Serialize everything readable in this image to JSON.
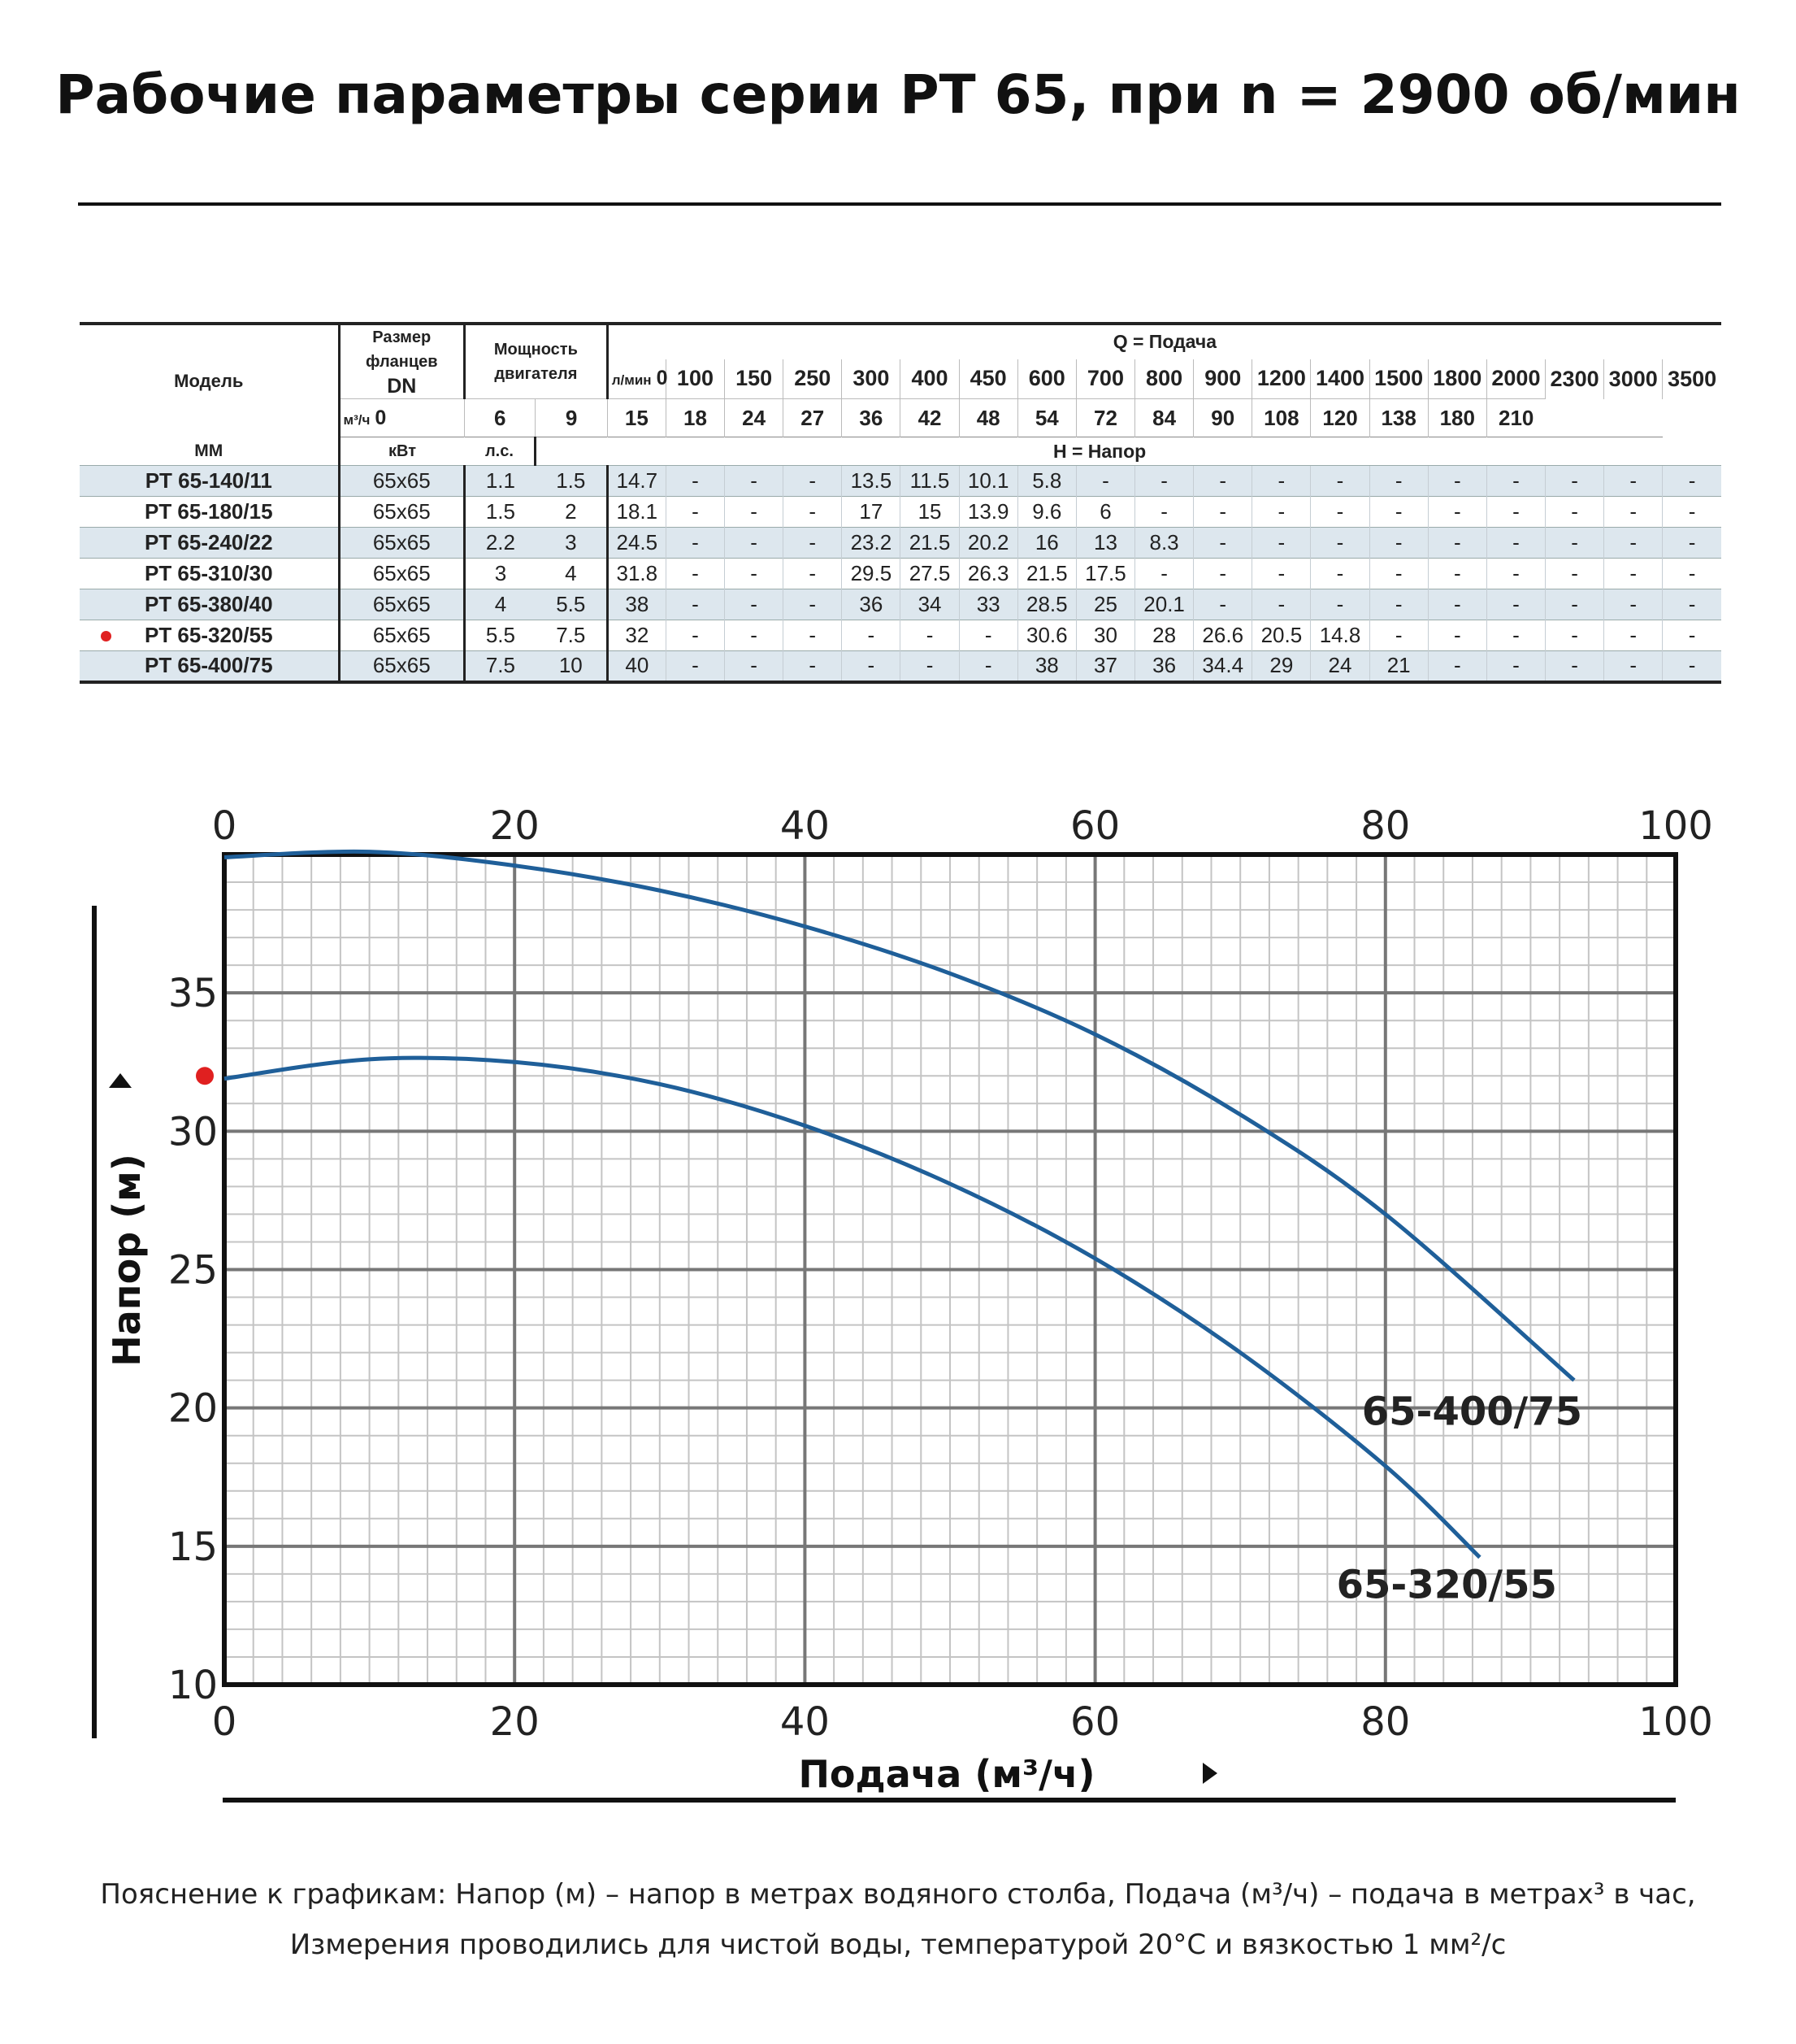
{
  "title": "Рабочие параметры серии PT 65, при n = 2900 об/мин",
  "table": {
    "headers": {
      "model": "Модель",
      "flange_l1": "Размер",
      "flange_l2": "фланцев",
      "dn": "DN",
      "mm": "ММ",
      "power_l1": "Мощность",
      "power_l2": "двигателя",
      "kw": "кВт",
      "hp": "л.с.",
      "flow_title": "Q = Подача",
      "lpm_unit": "л/мин",
      "m3h_unit": "м³/ч",
      "head_title": "H = Напор"
    },
    "flow_lpm": [
      "0",
      "100",
      "150",
      "250",
      "300",
      "400",
      "450",
      "600",
      "700",
      "800",
      "900",
      "1200",
      "1400",
      "1500",
      "1800",
      "2000",
      "2300",
      "3000",
      "3500"
    ],
    "flow_m3h": [
      "0",
      "6",
      "9",
      "15",
      "18",
      "24",
      "27",
      "36",
      "42",
      "48",
      "54",
      "72",
      "84",
      "90",
      "108",
      "120",
      "138",
      "180",
      "210"
    ],
    "rows": [
      {
        "model": "PT 65-140/11",
        "dn": "65x65",
        "kw": "1.1",
        "hp": "1.5",
        "highlight": false,
        "head": [
          "14.7",
          "-",
          "-",
          "-",
          "13.5",
          "11.5",
          "10.1",
          "5.8",
          "-",
          "-",
          "-",
          "-",
          "-",
          "-",
          "-",
          "-",
          "-",
          "-",
          "-"
        ]
      },
      {
        "model": "PT 65-180/15",
        "dn": "65x65",
        "kw": "1.5",
        "hp": "2",
        "highlight": false,
        "head": [
          "18.1",
          "-",
          "-",
          "-",
          "17",
          "15",
          "13.9",
          "9.6",
          "6",
          "-",
          "-",
          "-",
          "-",
          "-",
          "-",
          "-",
          "-",
          "-",
          "-"
        ]
      },
      {
        "model": "PT 65-240/22",
        "dn": "65x65",
        "kw": "2.2",
        "hp": "3",
        "highlight": false,
        "head": [
          "24.5",
          "-",
          "-",
          "-",
          "23.2",
          "21.5",
          "20.2",
          "16",
          "13",
          "8.3",
          "-",
          "-",
          "-",
          "-",
          "-",
          "-",
          "-",
          "-",
          "-"
        ]
      },
      {
        "model": "PT 65-310/30",
        "dn": "65x65",
        "kw": "3",
        "hp": "4",
        "highlight": false,
        "head": [
          "31.8",
          "-",
          "-",
          "-",
          "29.5",
          "27.5",
          "26.3",
          "21.5",
          "17.5",
          "-",
          "-",
          "-",
          "-",
          "-",
          "-",
          "-",
          "-",
          "-",
          "-"
        ]
      },
      {
        "model": "PT 65-380/40",
        "dn": "65x65",
        "kw": "4",
        "hp": "5.5",
        "highlight": false,
        "head": [
          "38",
          "-",
          "-",
          "-",
          "36",
          "34",
          "33",
          "28.5",
          "25",
          "20.1",
          "-",
          "-",
          "-",
          "-",
          "-",
          "-",
          "-",
          "-",
          "-"
        ]
      },
      {
        "model": "PT 65-320/55",
        "dn": "65x65",
        "kw": "5.5",
        "hp": "7.5",
        "highlight": true,
        "head": [
          "32",
          "-",
          "-",
          "-",
          "-",
          "-",
          "-",
          "30.6",
          "30",
          "28",
          "26.6",
          "20.5",
          "14.8",
          "-",
          "-",
          "-",
          "-",
          "-",
          "-"
        ]
      },
      {
        "model": "PT 65-400/75",
        "dn": "65x65",
        "kw": "7.5",
        "hp": "10",
        "highlight": false,
        "head": [
          "40",
          "-",
          "-",
          "-",
          "-",
          "-",
          "-",
          "38",
          "37",
          "36",
          "34.4",
          "29",
          "24",
          "21",
          "-",
          "-",
          "-",
          "-",
          "-"
        ]
      }
    ]
  },
  "chart_data": {
    "type": "line",
    "title": "",
    "xlabel": "Подача (м³/ч)",
    "ylabel": "Напор (м)",
    "xlim": [
      0,
      100
    ],
    "ylim": [
      10,
      40
    ],
    "xticks": [
      "0",
      "20",
      "40",
      "60",
      "80",
      "100"
    ],
    "yticks": [
      "10",
      "15",
      "20",
      "25",
      "30",
      "35"
    ],
    "grid": true,
    "series": [
      {
        "name": "65-400/75",
        "color": "#1f5f99",
        "x": [
          0,
          10,
          20,
          30,
          40,
          50,
          60,
          70,
          80,
          93
        ],
        "y": [
          39.9,
          40.1,
          39.6,
          38.7,
          37.4,
          35.7,
          33.5,
          30.6,
          27.0,
          21.0
        ]
      },
      {
        "name": "65-320/55",
        "color": "#1f5f99",
        "x": [
          0,
          10,
          20,
          30,
          40,
          50,
          60,
          70,
          80,
          86.5
        ],
        "y": [
          31.9,
          32.6,
          32.5,
          31.7,
          30.2,
          28.1,
          25.4,
          22.0,
          17.9,
          14.6
        ]
      }
    ],
    "marker": {
      "y": 32,
      "color": "#e02020"
    }
  },
  "caption": {
    "line1": "Пояснение к графикам: Напор (м) – напор в метрах водяного столба, Подача (м³/ч) – подача в метрах³ в час,",
    "line2": "Измерения проводились для чистой воды, температурой 20°C и вязкостью 1 мм²/с"
  }
}
